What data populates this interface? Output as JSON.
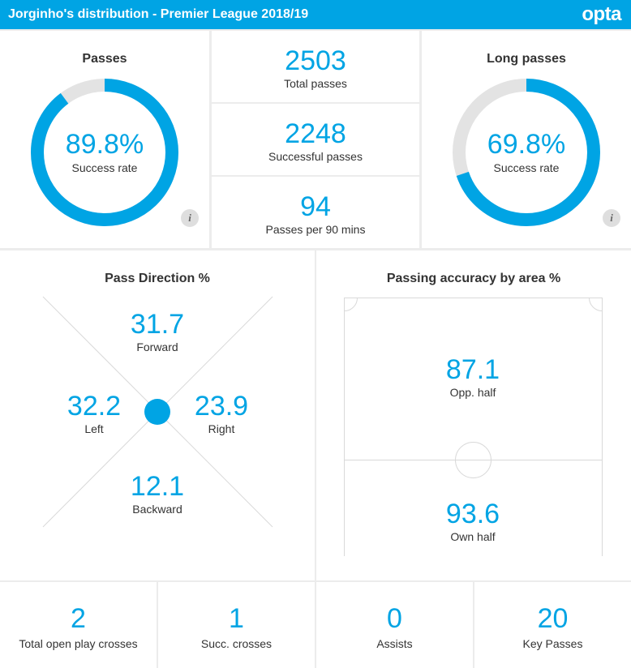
{
  "header": {
    "title": "Jorginho's distribution - Premier League 2018/19",
    "logo": "opta",
    "color": "#00a4e4"
  },
  "passes": {
    "title": "Passes",
    "success_rate_label": "89.8%",
    "success_rate_value": 0.898,
    "success_rate_caption": "Success rate",
    "info_icon": "i"
  },
  "totals": [
    {
      "value": "2503",
      "label": "Total passes"
    },
    {
      "value": "2248",
      "label": "Successful passes"
    },
    {
      "value": "94",
      "label": "Passes per 90 mins"
    }
  ],
  "long_passes": {
    "title": "Long passes",
    "success_rate_label": "69.8%",
    "success_rate_value": 0.698,
    "success_rate_caption": "Success rate",
    "info_icon": "i"
  },
  "pass_direction": {
    "title": "Pass Direction %",
    "forward": {
      "value": "31.7",
      "label": "Forward"
    },
    "left": {
      "value": "32.2",
      "label": "Left"
    },
    "right": {
      "value": "23.9",
      "label": "Right"
    },
    "backward": {
      "value": "12.1",
      "label": "Backward"
    }
  },
  "accuracy_by_area": {
    "title": "Passing accuracy by area %",
    "opp_half": {
      "value": "87.1",
      "label": "Opp. half"
    },
    "own_half": {
      "value": "93.6",
      "label": "Own half"
    }
  },
  "bottom_stats": [
    {
      "value": "2",
      "label": "Total open play crosses"
    },
    {
      "value": "1",
      "label": "Succ. crosses"
    },
    {
      "value": "0",
      "label": "Assists"
    },
    {
      "value": "20",
      "label": "Key Passes"
    }
  ],
  "colors": {
    "accent": "#00a4e4",
    "ring_track": "#e3e3e3",
    "divider": "#ececec",
    "pitch_line": "#d9d9d9"
  }
}
